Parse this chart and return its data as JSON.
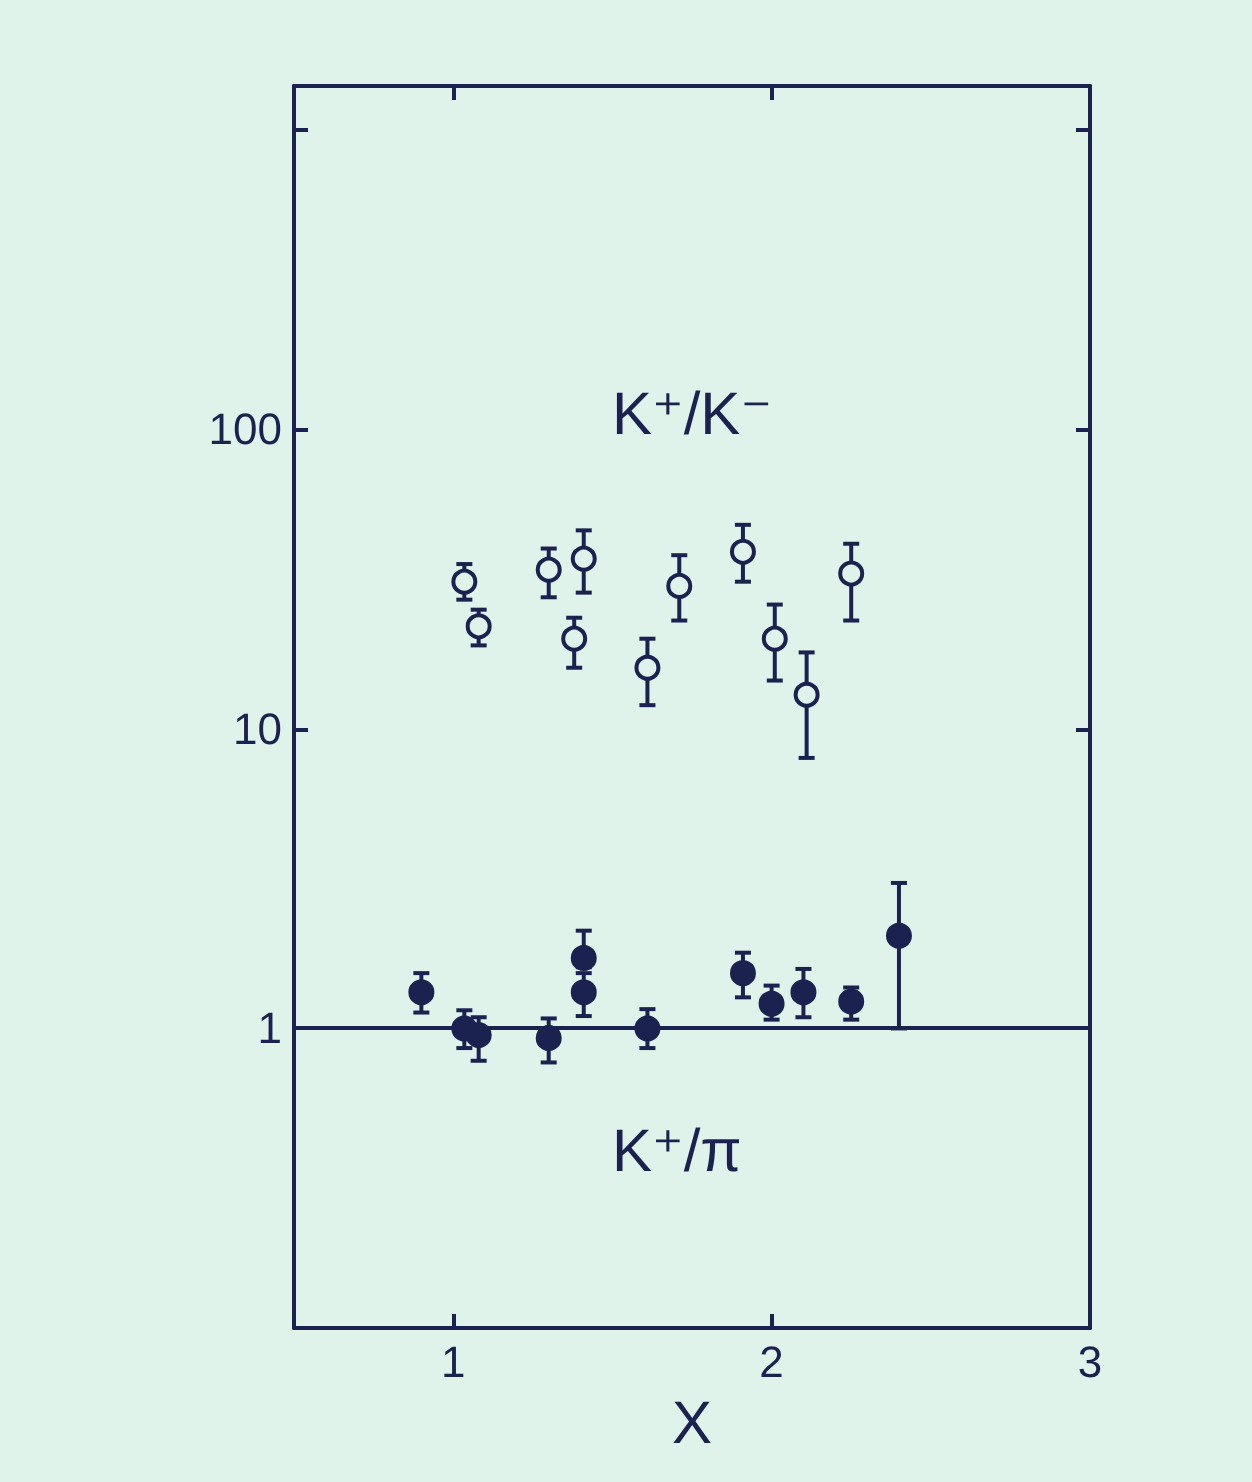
{
  "chart_data": {
    "type": "scatter",
    "xlabel": "X",
    "log": "y",
    "xlim": [
      0.5,
      3
    ],
    "xticks": [
      1,
      2,
      3
    ],
    "ylim": [
      0.1,
      1400
    ],
    "yticks": [
      1,
      10,
      100,
      {
        "value": 1000,
        "label": null
      }
    ],
    "grid": false,
    "legend": false,
    "series": [
      {
        "name": "K⁺/K⁻",
        "color": "#1c2250",
        "marker": "circle",
        "x": [
          1.035,
          1.08,
          1.3,
          1.41,
          1.38,
          1.61,
          1.71,
          1.91,
          2.01,
          2.11,
          2.25
        ],
        "values": [
          31,
          22,
          34,
          37,
          20,
          16,
          30,
          39,
          20,
          13,
          33
        ],
        "errors": [
          [
            27,
            35.5
          ],
          [
            19,
            25
          ],
          [
            27.5,
            40
          ],
          [
            28.5,
            46
          ],
          [
            16,
            23.5
          ],
          [
            12,
            20
          ],
          [
            23,
            38
          ],
          [
            31,
            48
          ],
          [
            14.5,
            26
          ],
          [
            8,
            18
          ],
          [
            23,
            41.5
          ]
        ]
      },
      {
        "name": "K⁺/π",
        "color": "#1c2250",
        "marker": "circle",
        "x": [
          0.9,
          1.035,
          1.08,
          1.3,
          1.41,
          1.41,
          1.61,
          1.91,
          2.0,
          2.1,
          2.25,
          2.4
        ],
        "values": [
          1.32,
          1.0,
          0.95,
          0.93,
          1.72,
          1.32,
          1.0,
          1.53,
          1.21,
          1.32,
          1.23,
          2.04
        ],
        "errors": [
          [
            1.13,
            1.53
          ],
          [
            0.86,
            1.15
          ],
          [
            0.78,
            1.09
          ],
          [
            0.77,
            1.08
          ],
          [
            1.6,
            2.12
          ],
          [
            1.1,
            1.53
          ],
          [
            0.86,
            1.16
          ],
          [
            1.27,
            1.79
          ],
          [
            1.07,
            1.39
          ],
          [
            1.09,
            1.58
          ],
          [
            1.07,
            1.37
          ],
          [
            1.0,
            3.06
          ]
        ]
      }
    ],
    "ref_lines": [
      {
        "axis": "y",
        "value": 1,
        "label": null
      }
    ]
  }
}
